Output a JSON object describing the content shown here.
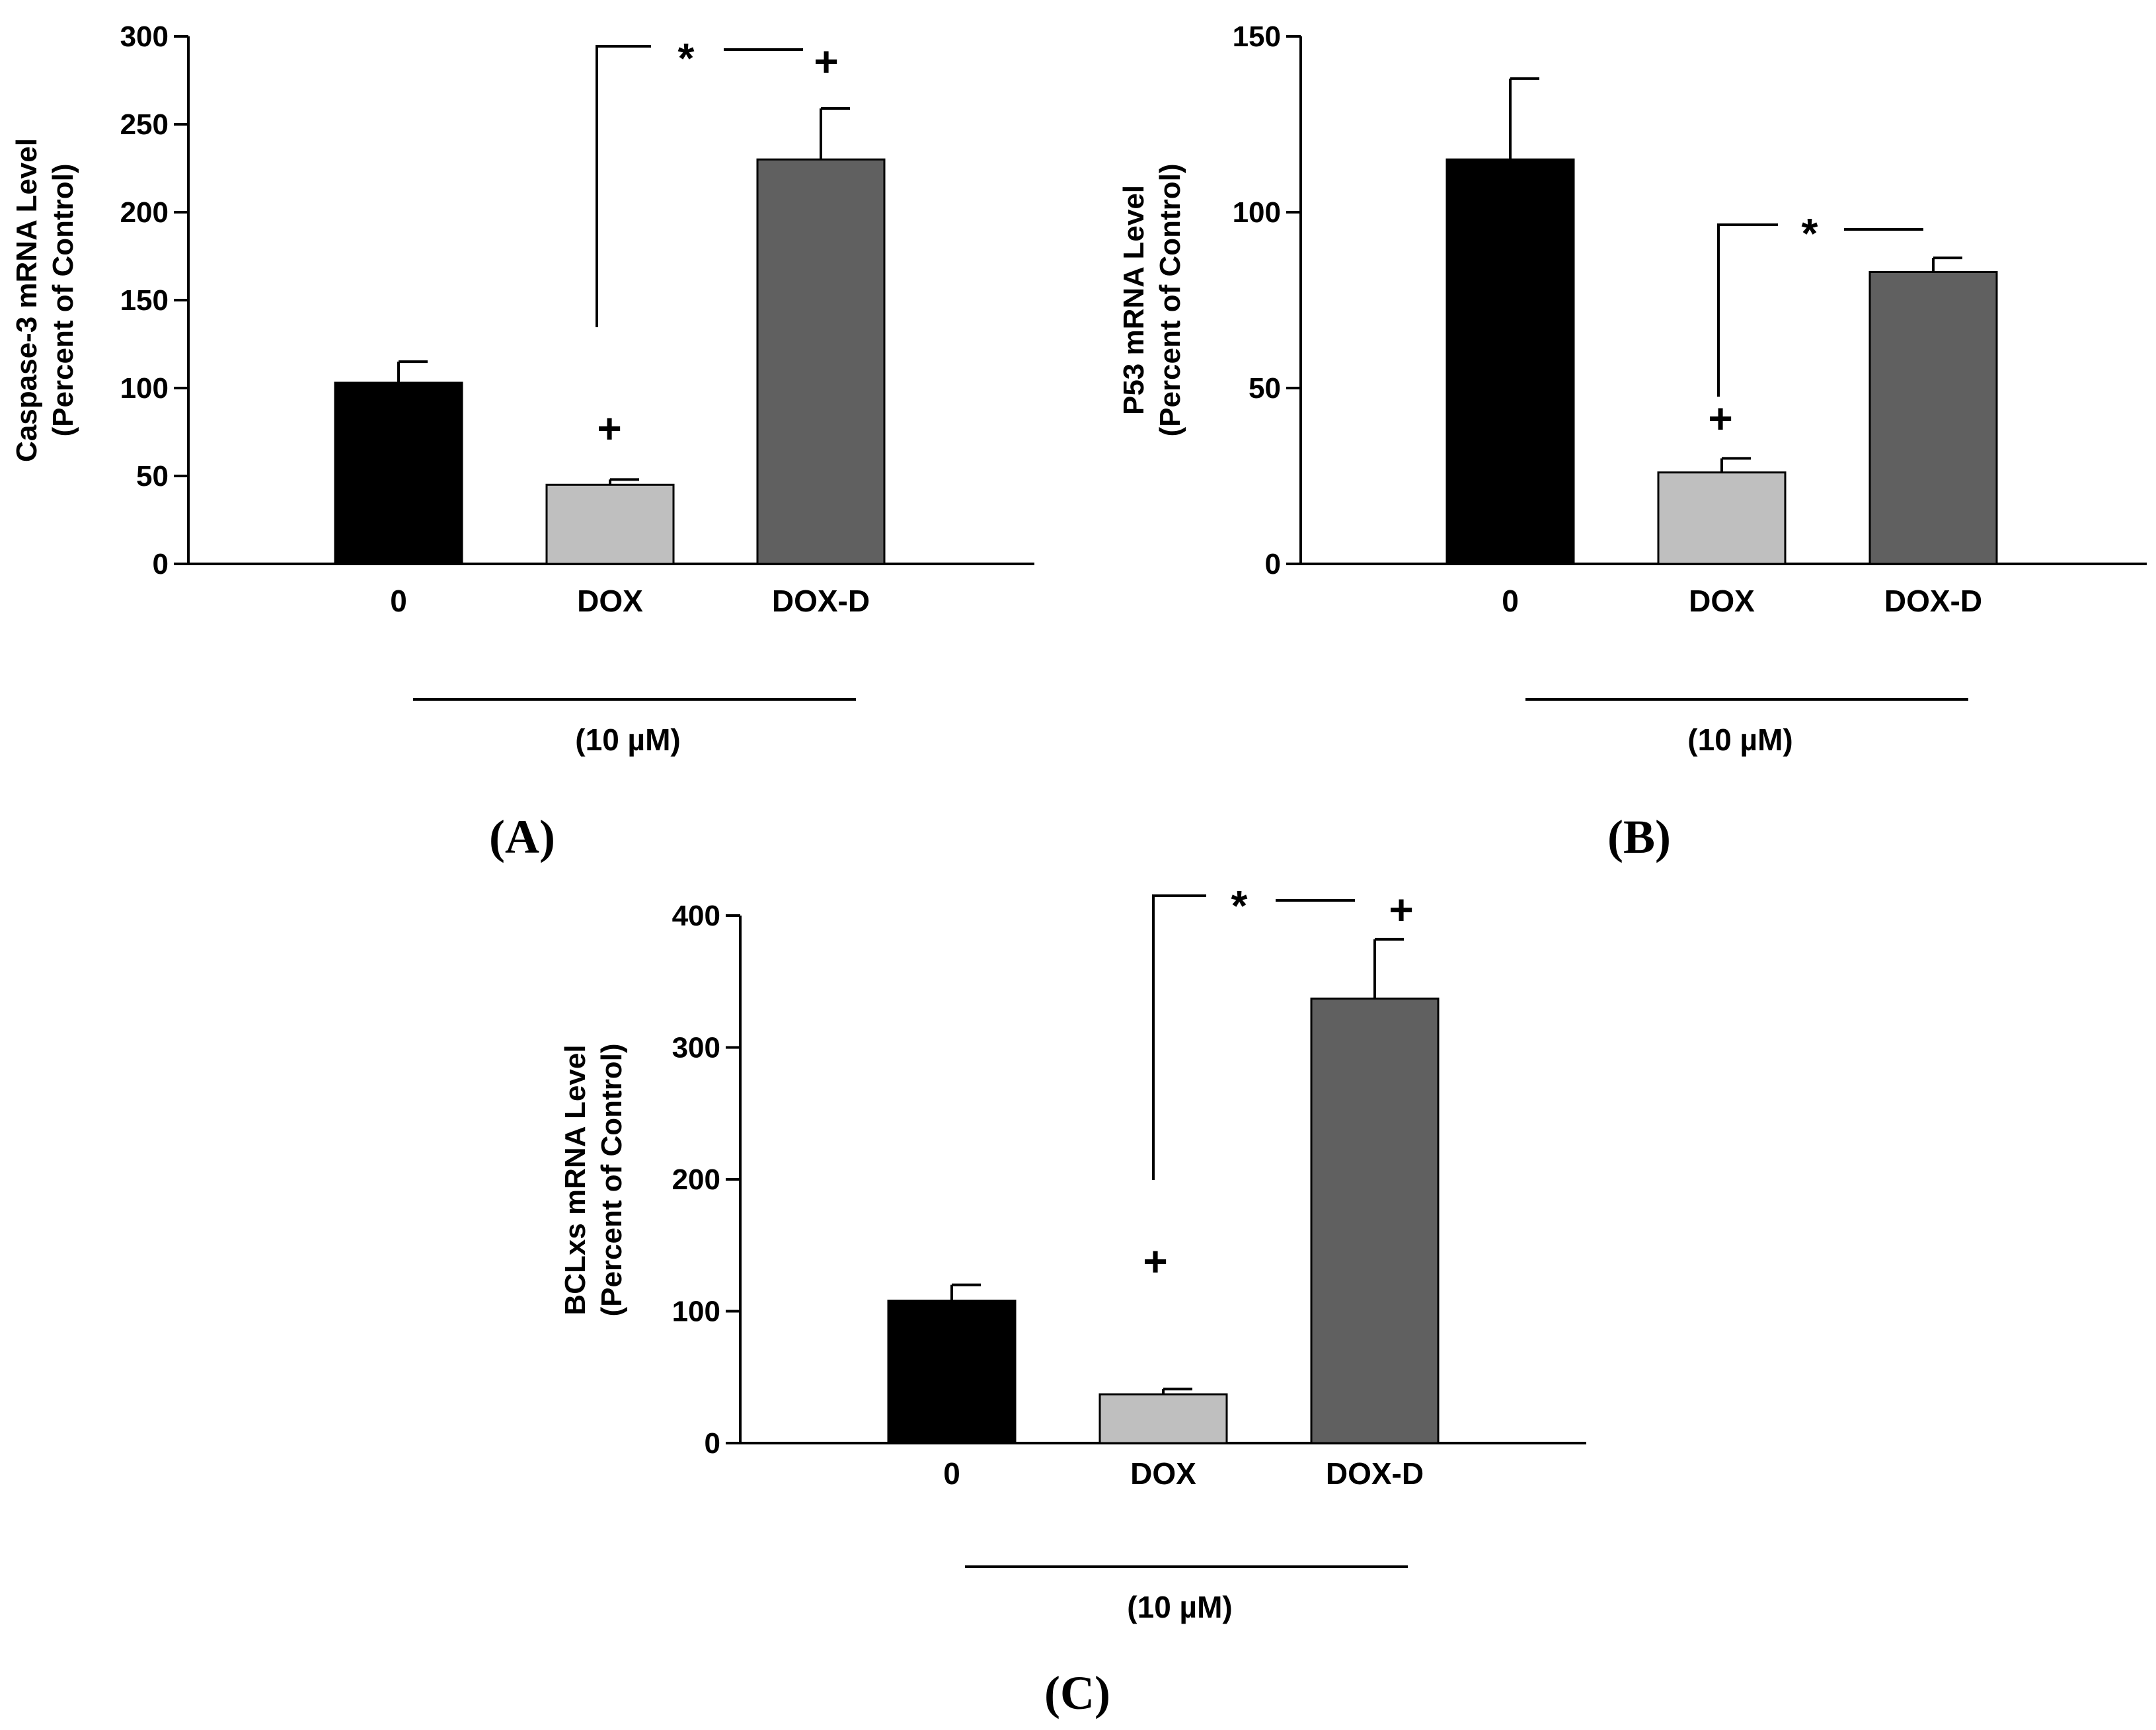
{
  "chart_data": [
    {
      "type": "bar",
      "panel_label": "(A)",
      "ylabel": "Caspase-3 mRNA Level",
      "ylabel2": "(Percent of Control)",
      "categories": [
        "0",
        "DOX",
        "DOX-D"
      ],
      "values": [
        103,
        45,
        230
      ],
      "errors": [
        12,
        3,
        29
      ],
      "colors": [
        "#000000",
        "#bfbfbf",
        "#606060"
      ],
      "ylim": [
        0,
        300
      ],
      "yticks": [
        "0",
        "50",
        "100",
        "150",
        "200",
        "250",
        "300"
      ],
      "concentration_label": "(10 µM)",
      "annotations": {
        "star": "*",
        "plus_dox": "+",
        "plus_doxd": "+"
      }
    },
    {
      "type": "bar",
      "panel_label": "(B)",
      "ylabel": "P53 mRNA Level",
      "ylabel2": "(Percent of Control)",
      "categories": [
        "0",
        "DOX",
        "DOX-D"
      ],
      "values": [
        115,
        26,
        83
      ],
      "errors": [
        23,
        4,
        4
      ],
      "colors": [
        "#000000",
        "#bfbfbf",
        "#606060"
      ],
      "ylim": [
        0,
        150
      ],
      "yticks": [
        "0",
        "50",
        "100",
        "150"
      ],
      "concentration_label": "(10 µM)",
      "annotations": {
        "star": "*",
        "plus_dox": "+"
      }
    },
    {
      "type": "bar",
      "panel_label": "(C)",
      "ylabel": "BCLxs mRNA Level",
      "ylabel2": "(Percent of Control)",
      "categories": [
        "0",
        "DOX",
        "DOX-D"
      ],
      "values": [
        108,
        37,
        337
      ],
      "errors": [
        12,
        4,
        45
      ],
      "colors": [
        "#000000",
        "#bfbfbf",
        "#606060"
      ],
      "ylim": [
        0,
        400
      ],
      "yticks": [
        "0",
        "100",
        "200",
        "300",
        "400"
      ],
      "concentration_label": "(10 µM)",
      "annotations": {
        "star": "*",
        "plus_dox": "+",
        "plus_doxd": "+"
      }
    }
  ]
}
